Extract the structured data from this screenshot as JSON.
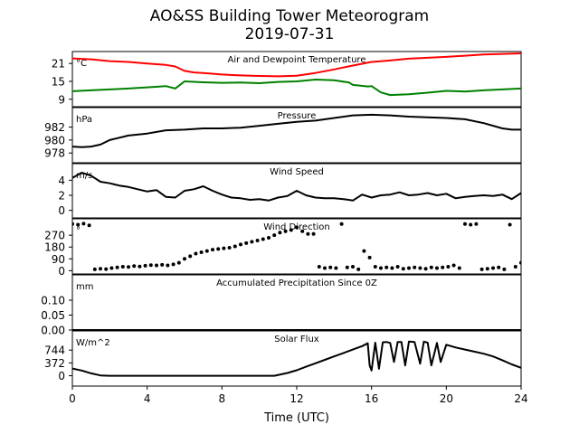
{
  "figure": {
    "title": "AO&SS Building Tower Meteorogram",
    "date": "2019-07-31",
    "xlabel": "Time (UTC)",
    "x_ticks": [
      "0",
      "4",
      "8",
      "12",
      "16",
      "20",
      "24"
    ]
  },
  "colors": {
    "axis": "#000000",
    "temperature": "#ff0000",
    "dewpoint": "#008000",
    "line": "#000000"
  },
  "chart_data": [
    {
      "type": "line",
      "title": "Air and Dewpoint Temperature",
      "unit_label": "°C",
      "xlim": [
        0,
        24
      ],
      "ylim": [
        6.5,
        25
      ],
      "y_ticks": [
        9,
        15,
        21
      ],
      "y_tick_labels": [
        "9",
        "15",
        "21"
      ],
      "series": [
        {
          "key": "temperature",
          "x": [
            0,
            1,
            2,
            3,
            4,
            5,
            5.5,
            6,
            6.5,
            7,
            8,
            9,
            10,
            11,
            12,
            13,
            14,
            15,
            16,
            17,
            18,
            19,
            20,
            21,
            22,
            23,
            24
          ],
          "values": [
            22.7,
            22.4,
            21.8,
            21.5,
            21.0,
            20.5,
            20.0,
            18.5,
            18.0,
            17.8,
            17.3,
            17.0,
            16.8,
            16.7,
            16.9,
            17.8,
            19.0,
            20.3,
            21.5,
            22.0,
            22.6,
            22.9,
            23.2,
            23.6,
            24.0,
            24.2,
            24.4
          ]
        },
        {
          "key": "dewpoint",
          "x": [
            0,
            1,
            2,
            3,
            4,
            5,
            5.5,
            6,
            7,
            8,
            9,
            10,
            11,
            12,
            13,
            14,
            14.8,
            15,
            15.8,
            16,
            16.5,
            17,
            18,
            19,
            20,
            21,
            22,
            23,
            24
          ],
          "values": [
            11.7,
            12.0,
            12.3,
            12.6,
            13.0,
            13.4,
            12.6,
            15.0,
            14.7,
            14.5,
            14.6,
            14.4,
            14.8,
            15.0,
            15.6,
            15.4,
            14.6,
            13.8,
            13.3,
            13.4,
            11.3,
            10.4,
            10.7,
            11.2,
            11.8,
            11.6,
            12.0,
            12.3,
            12.6
          ]
        }
      ]
    },
    {
      "type": "line",
      "title": "Pressure",
      "unit_label": "hPa",
      "xlim": [
        0,
        24
      ],
      "ylim": [
        976.5,
        985.0
      ],
      "y_ticks": [
        978,
        980,
        982
      ],
      "y_tick_labels": [
        "978",
        "980",
        "982"
      ],
      "series": [
        {
          "key": "pressure",
          "x": [
            0,
            0.5,
            1,
            1.5,
            2,
            3,
            4,
            5,
            6,
            7,
            8,
            9,
            10,
            11,
            12,
            13,
            14,
            15,
            16,
            17,
            18,
            19,
            20,
            21,
            22,
            23,
            23.5,
            24
          ],
          "values": [
            979.0,
            978.9,
            979.0,
            979.3,
            980.0,
            980.7,
            981.0,
            981.5,
            981.6,
            981.8,
            981.8,
            981.9,
            982.2,
            982.5,
            982.8,
            983.0,
            983.4,
            983.8,
            983.9,
            983.8,
            983.6,
            983.5,
            983.4,
            983.2,
            982.6,
            981.8,
            981.6,
            981.6
          ]
        }
      ]
    },
    {
      "type": "line",
      "title": "Wind Speed",
      "unit_label": "m/s",
      "xlim": [
        0,
        24
      ],
      "ylim": [
        -1.0,
        6.2
      ],
      "y_ticks": [
        0,
        2,
        4
      ],
      "y_tick_labels": [
        "0",
        "2",
        "4"
      ],
      "series": [
        {
          "key": "wind_speed",
          "x": [
            0,
            0.5,
            1,
            1.5,
            2,
            2.5,
            3,
            3.5,
            4,
            4.5,
            5,
            5.5,
            6,
            6.5,
            7,
            7.5,
            8,
            8.5,
            9,
            9.5,
            10,
            10.5,
            11,
            11.5,
            12,
            12.5,
            13,
            13.5,
            14,
            14.5,
            15,
            15.5,
            16,
            16.5,
            17,
            17.5,
            18,
            18.5,
            19,
            19.5,
            20,
            20.5,
            21,
            21.5,
            22,
            22.5,
            23,
            23.5,
            24
          ],
          "values": [
            4.3,
            5.0,
            4.6,
            3.8,
            3.6,
            3.3,
            3.1,
            2.8,
            2.5,
            2.7,
            1.8,
            1.7,
            2.6,
            2.8,
            3.2,
            2.6,
            2.1,
            1.7,
            1.6,
            1.4,
            1.5,
            1.3,
            1.7,
            1.9,
            2.6,
            2.0,
            1.7,
            1.6,
            1.6,
            1.5,
            1.3,
            2.1,
            1.7,
            2.0,
            2.1,
            2.4,
            2.0,
            2.1,
            2.3,
            2.0,
            2.2,
            1.6,
            1.8,
            1.9,
            2.0,
            1.9,
            2.1,
            1.5,
            2.3
          ]
        }
      ]
    },
    {
      "type": "scatter",
      "title": "Wind Direction",
      "unit_label": "°",
      "xlim": [
        0,
        24
      ],
      "ylim": [
        -25,
        395
      ],
      "y_ticks": [
        0,
        90,
        180,
        270
      ],
      "y_tick_labels": [
        "0",
        "90",
        "180",
        "270"
      ],
      "series": [
        {
          "key": "wind_direction",
          "x": [
            0,
            0.3,
            0.6,
            0.9,
            1.2,
            1.5,
            1.8,
            2.1,
            2.4,
            2.7,
            3.0,
            3.3,
            3.6,
            3.9,
            4.2,
            4.5,
            4.8,
            5.1,
            5.4,
            5.7,
            6.0,
            6.3,
            6.6,
            6.9,
            7.2,
            7.5,
            7.8,
            8.1,
            8.4,
            8.7,
            9.0,
            9.3,
            9.6,
            9.9,
            10.2,
            10.5,
            10.8,
            11.1,
            11.4,
            11.7,
            12.0,
            12.3,
            12.6,
            12.9,
            13.2,
            13.5,
            13.8,
            14.1,
            14.4,
            14.7,
            15.0,
            15.3,
            15.6,
            15.9,
            16.2,
            16.5,
            16.8,
            17.1,
            17.4,
            17.7,
            18.0,
            18.3,
            18.6,
            18.9,
            19.2,
            19.5,
            19.8,
            20.1,
            20.4,
            20.7,
            21.0,
            21.3,
            21.6,
            21.9,
            22.2,
            22.5,
            22.8,
            23.1,
            23.4,
            23.7,
            24.0
          ],
          "values": [
            355,
            350,
            358,
            345,
            10,
            15,
            12,
            20,
            25,
            30,
            28,
            35,
            32,
            38,
            42,
            40,
            45,
            40,
            48,
            60,
            90,
            110,
            130,
            140,
            150,
            160,
            165,
            170,
            175,
            185,
            200,
            210,
            220,
            230,
            240,
            250,
            270,
            290,
            300,
            310,
            330,
            300,
            280,
            280,
            30,
            20,
            25,
            20,
            355,
            25,
            30,
            10,
            150,
            100,
            30,
            20,
            25,
            20,
            30,
            15,
            20,
            25,
            20,
            15,
            25,
            20,
            25,
            30,
            40,
            20,
            355,
            350,
            355,
            10,
            15,
            20,
            25,
            10,
            350,
            30,
            60
          ]
        }
      ]
    },
    {
      "type": "line",
      "title": "Accumulated Precipitation Since 0Z",
      "unit_label": "mm",
      "xlim": [
        0,
        24
      ],
      "ylim": [
        0,
        0.185
      ],
      "y_ticks": [
        0.0,
        0.05,
        0.1
      ],
      "y_tick_labels": [
        "0.00",
        "0.05",
        "0.10"
      ],
      "series": [
        {
          "key": "precipitation",
          "x": [
            0,
            24
          ],
          "values": [
            0.0,
            0.0
          ]
        }
      ]
    },
    {
      "type": "line",
      "title": "Solar Flux",
      "unit_label": "W/m^2",
      "xlim": [
        0,
        24
      ],
      "ylim": [
        -300,
        1300
      ],
      "y_ticks": [
        0,
        372,
        744
      ],
      "y_tick_labels": [
        "0",
        "372",
        "744"
      ],
      "series": [
        {
          "key": "solar_flux",
          "x": [
            0,
            0.5,
            1,
            1.5,
            2,
            3,
            4,
            5,
            6,
            7,
            8,
            9,
            10,
            10.8,
            11.5,
            12,
            12.5,
            13,
            13.5,
            14,
            14.5,
            15,
            15.5,
            15.8,
            15.9,
            16.0,
            16.2,
            16.4,
            16.6,
            16.8,
            17.0,
            17.2,
            17.4,
            17.6,
            17.8,
            18.0,
            18.3,
            18.6,
            18.8,
            19.0,
            19.2,
            19.5,
            19.7,
            20.0,
            20.5,
            21,
            21.5,
            22,
            22.5,
            23,
            23.5,
            24
          ],
          "values": [
            210,
            150,
            70,
            10,
            0,
            0,
            0,
            0,
            0,
            0,
            0,
            0,
            0,
            0,
            80,
            160,
            260,
            360,
            460,
            560,
            660,
            760,
            860,
            940,
            300,
            150,
            960,
            200,
            970,
            980,
            950,
            400,
            980,
            980,
            300,
            990,
            980,
            350,
            990,
            960,
            300,
            950,
            400,
            900,
            820,
            760,
            700,
            640,
            560,
            450,
            330,
            230
          ]
        }
      ]
    }
  ]
}
